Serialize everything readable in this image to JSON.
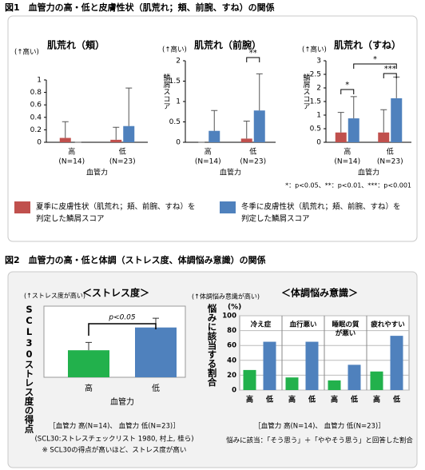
{
  "figure1": {
    "title": "図1　血管力の高・低と皮膚性状（肌荒れ；頬、前腕、すね）の関係",
    "footnote": "*：p<0.05、**：p<0.01、***：p<0.001",
    "legend": [
      {
        "lines": [
          "夏季に皮膚性状（肌荒れ；頬、前腕、すね）を",
          "判定した鱗屑スコア"
        ],
        "color": "#c0504d"
      },
      {
        "lines": [
          "冬季に皮膚性状（肌荒れ；頬、前腕、すね）を",
          "判定した鱗屑スコア"
        ],
        "color": "#4f81bd"
      }
    ]
  },
  "figure2": {
    "title": "図2　血管力の高・低と体調（ストレス度、体調悩み意識）の関係",
    "notes_left": [
      "［血管力 高(N=14)、 血管力 低(N=23)］",
      "(SCL30:ストレスチェックリスト 1980, 村上, 桂ら)",
      "※ SCL30の得点が高いほど、ストレス度が高い"
    ],
    "notes_right": [
      "［血管力 高(N=14)、 血管力 低(N=23)］",
      "悩みに該当：「そう思う」＋「ややそう思う」と回答した割合"
    ]
  },
  "chart_data": [
    {
      "type": "bar",
      "title": "肌荒れ（頬）",
      "y_note": "(↑高い)",
      "xlabel": "血管力",
      "categories": [
        "高",
        "低"
      ],
      "category_n": [
        "(N=14)",
        "(N=23)"
      ],
      "series": [
        {
          "color": "#c0504d",
          "values": [
            0.07,
            0.04
          ],
          "errors": [
            0.26,
            0.2
          ]
        },
        {
          "color": "#4f81bd",
          "values": [
            0,
            0.26
          ],
          "errors": [
            0,
            0.61
          ]
        }
      ],
      "ylim": [
        0,
        1
      ],
      "yticks": [
        0,
        0.2,
        0.4,
        0.6,
        0.8,
        1
      ]
    },
    {
      "type": "bar",
      "title": "肌荒れ（前腕）",
      "y_note": "(↑高い)",
      "ylabel": "鱗屑スコア",
      "xlabel": "血管力",
      "categories": [
        "高",
        "低"
      ],
      "category_n": [
        "(N=14)",
        "(N=23)"
      ],
      "series": [
        {
          "color": "#c0504d",
          "values": [
            0,
            0.09
          ],
          "errors": [
            0,
            0.43
          ]
        },
        {
          "color": "#4f81bd",
          "values": [
            0.28,
            0.78
          ],
          "errors": [
            0.5,
            0.9
          ]
        }
      ],
      "ylim": [
        0,
        2
      ],
      "yticks": [
        0,
        0.5,
        1,
        1.5,
        2
      ],
      "annotations": [
        "**"
      ]
    },
    {
      "type": "bar",
      "title": "肌荒れ（すね）",
      "y_note": "(↑高い)",
      "ylabel": "鱗屑スコア",
      "xlabel": "血管力",
      "categories": [
        "高",
        "低"
      ],
      "category_n": [
        "(N=14)",
        "(N=23)"
      ],
      "series": [
        {
          "color": "#c0504d",
          "values": [
            0.36,
            0.36
          ],
          "errors": [
            0.74,
            0.84
          ]
        },
        {
          "color": "#4f81bd",
          "values": [
            0.88,
            1.62
          ],
          "errors": [
            0.8,
            0.78
          ]
        }
      ],
      "ylim": [
        0,
        3
      ],
      "yticks": [
        0,
        0.5,
        1,
        1.5,
        2,
        2.5,
        3
      ],
      "annotations": [
        "*",
        "***",
        "*"
      ]
    },
    {
      "type": "stress",
      "title": "＜ストレス度＞",
      "y_note": "(↑ストレス度が高い)",
      "ylabel": "SCL30ストレス度の得点",
      "xlabel": "血管力",
      "categories": [
        "高",
        "低"
      ],
      "colors": [
        "#22b14c",
        "#4f81bd"
      ],
      "values": [
        3.8,
        7.0
      ],
      "errors": [
        1.1,
        1.3
      ],
      "ylim": [
        0,
        10
      ],
      "annotations": [
        "p<0.05"
      ]
    },
    {
      "type": "panels",
      "title": "＜体調悩み意識＞",
      "y_note": "(↑体調悩み意識が高い)",
      "ylabel": "悩みに該当する割合",
      "yunit": "(%)",
      "categories": [
        "高",
        "低"
      ],
      "colors": [
        "#22b14c",
        "#4f81bd"
      ],
      "ylim": [
        0,
        100
      ],
      "yticks": [
        0,
        20,
        40,
        60,
        80,
        100
      ],
      "grid": true,
      "panels": [
        {
          "title": [
            "冷え症"
          ],
          "values": [
            27,
            65
          ]
        },
        {
          "title": [
            "血行悪い"
          ],
          "values": [
            17,
            65
          ]
        },
        {
          "title": [
            "睡眠の質",
            "が悪い"
          ],
          "values": [
            13,
            34
          ]
        },
        {
          "title": [
            "疲れやすい"
          ],
          "values": [
            25,
            73
          ]
        }
      ]
    }
  ]
}
